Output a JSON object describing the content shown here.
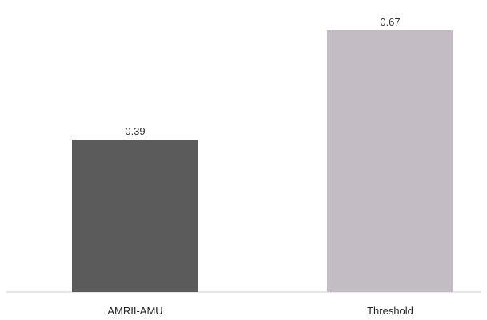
{
  "chart_data": {
    "type": "bar",
    "categories": [
      "AMRII-AMU",
      "Threshold"
    ],
    "values": [
      0.39,
      0.67
    ],
    "data_labels": [
      "0.39",
      "0.67"
    ],
    "colors": [
      "#5b5b5b",
      "#c4bcc4"
    ],
    "axis_color": "#cfcfcf",
    "ylim": [
      0,
      0.7
    ],
    "grid": false,
    "legend": "none"
  }
}
